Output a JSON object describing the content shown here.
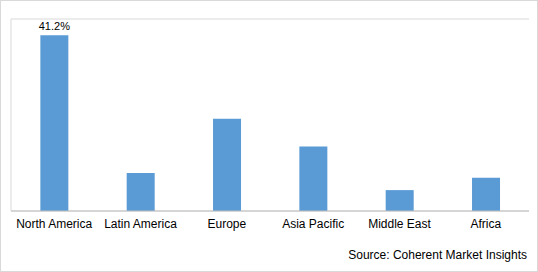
{
  "chart_data": {
    "type": "bar",
    "categories": [
      "North America",
      "Latin America",
      "Europe",
      "Asia Pacific",
      "Middle East",
      "Africa"
    ],
    "values": [
      41.2,
      8.9,
      21.6,
      15.1,
      4.9,
      7.8
    ],
    "value_labels": [
      "41.2%",
      null,
      null,
      null,
      null,
      null
    ],
    "color": "#5b9bd5",
    "ylim": [
      0,
      45
    ],
    "yticks": [
      0,
      5,
      10,
      15,
      20,
      25,
      30,
      35,
      40,
      45
    ],
    "grid": true,
    "tick_labels": "x",
    "source": "Source: Coherent Market Insights"
  }
}
